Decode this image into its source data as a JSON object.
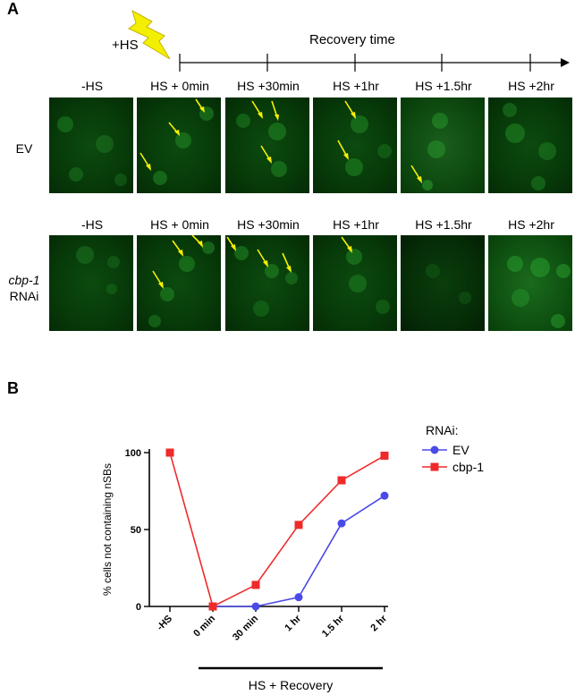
{
  "panel_a": {
    "letter": "A",
    "hs_label": "+HS",
    "recovery_label": "Recovery time",
    "columns": [
      "-HS",
      "HS + 0min",
      "HS +30min",
      "HS +1hr",
      "HS +1.5hr",
      "HS +2hr"
    ],
    "rows": [
      {
        "label_line1": "EV",
        "label_line2": ""
      },
      {
        "label_line1": "cbp-1",
        "label_line2": "RNAi"
      }
    ],
    "icon": "lightning-bolt-icon",
    "arrow_color": "#f5f200",
    "bolt_color": "#f2ef00"
  },
  "panel_b": {
    "letter": "B",
    "legend_title": "RNAi:"
  },
  "chart_data": {
    "type": "line",
    "categories": [
      "-HS",
      "0 min",
      "30 min",
      "1 hr",
      "1.5 hr",
      "2 hr"
    ],
    "series": [
      {
        "name": "EV",
        "values": [
          null,
          0,
          0,
          6,
          54,
          72
        ],
        "color": "#4a4ae8",
        "marker": "circle"
      },
      {
        "name": "cbp-1",
        "values": [
          100,
          0,
          14,
          53,
          82,
          98
        ],
        "color": "#ee2a2a",
        "marker": "square"
      }
    ],
    "ylabel": "% cells not containing nSBs",
    "xlabel": "HS + Recovery",
    "yticks": [
      0,
      50,
      100
    ],
    "ylim": [
      0,
      100
    ],
    "legend_position": "top-right"
  }
}
